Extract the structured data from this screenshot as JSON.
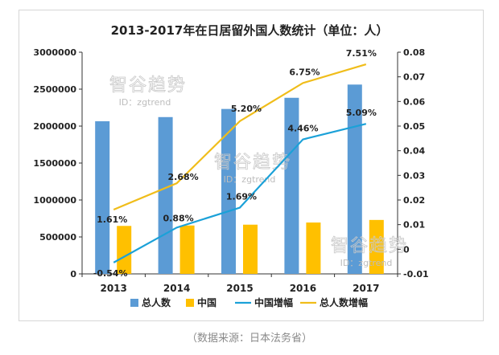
{
  "chart_data": {
    "type": "bar",
    "title": "2013-2017年在日居留外国人数统计（单位：人）",
    "categories": [
      "2013",
      "2014",
      "2015",
      "2016",
      "2017"
    ],
    "series": [
      {
        "name": "总人数",
        "kind": "bar",
        "axis": "left",
        "color": "#5b9bd5",
        "values": [
          2066000,
          2122000,
          2232000,
          2383000,
          2562000
        ]
      },
      {
        "name": "中国",
        "kind": "bar",
        "axis": "left",
        "color": "#ffc000",
        "values": [
          649000,
          655000,
          666000,
          695000,
          730000
        ]
      },
      {
        "name": "中国增幅",
        "kind": "line",
        "axis": "right",
        "color": "#1ba1d8",
        "values": [
          -0.0054,
          0.0088,
          0.0169,
          0.0446,
          0.0509
        ],
        "labels": [
          "-0.54%",
          "0.88%",
          "1.69%",
          "4.46%",
          "5.09%"
        ]
      },
      {
        "name": "总人数增幅",
        "kind": "line",
        "axis": "right",
        "color": "#f0bd1a",
        "values": [
          0.0161,
          0.0268,
          0.052,
          0.0675,
          0.0751
        ],
        "labels": [
          "1.61%",
          "2.68%",
          "5.20%",
          "6.75%",
          "7.51%"
        ]
      }
    ],
    "left_axis": {
      "min": 0,
      "max": 3000000,
      "step": 500000,
      "ticks": [
        "0",
        "500000",
        "1000000",
        "1500000",
        "2000000",
        "2500000",
        "3000000"
      ]
    },
    "right_axis": {
      "min": -0.01,
      "max": 0.08,
      "step": 0.01,
      "ticks": [
        "-0.01",
        "0",
        "0.01",
        "0.02",
        "0.03",
        "0.04",
        "0.05",
        "0.06",
        "0.07",
        "0.08"
      ]
    },
    "legend_position": "bottom",
    "grid": false,
    "watermark": {
      "brand": "智谷趋势",
      "handle": "ID：zgtrend"
    }
  },
  "source_note": "（数据来源：日本法务省）"
}
